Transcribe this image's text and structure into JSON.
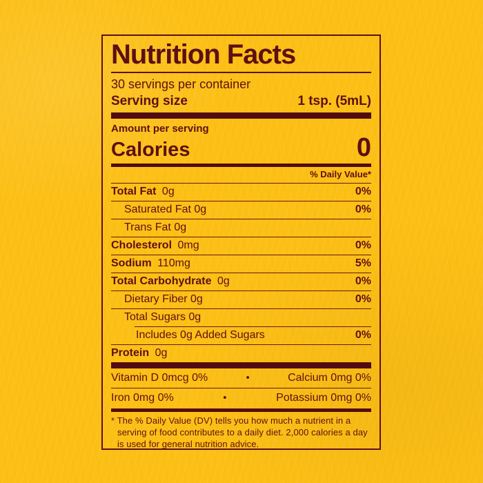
{
  "label": {
    "title": "Nutrition Facts",
    "servings_per_container": "30 servings per container",
    "serving_size_label": "Serving size",
    "serving_size_value": "1 tsp. (5mL)",
    "amount_per_serving": "Amount per serving",
    "calories_label": "Calories",
    "calories_value": "0",
    "daily_value_header": "% Daily Value*",
    "rows": [
      {
        "name": "Total Fat",
        "amount": "0g",
        "dv": "0%",
        "bold": true,
        "indent": 0,
        "sep_indent": false
      },
      {
        "name": "Saturated Fat",
        "amount": "0g",
        "dv": "0%",
        "bold": false,
        "indent": 1,
        "sep_indent": false
      },
      {
        "name": "Trans Fat",
        "amount": "0g",
        "dv": "",
        "bold": false,
        "indent": 1,
        "sep_indent": false
      },
      {
        "name": "Cholesterol",
        "amount": "0mg",
        "dv": "0%",
        "bold": true,
        "indent": 0,
        "sep_indent": false
      },
      {
        "name": "Sodium",
        "amount": "110mg",
        "dv": "5%",
        "bold": true,
        "indent": 0,
        "sep_indent": false
      },
      {
        "name": "Total Carbohydrate",
        "amount": "0g",
        "dv": "0%",
        "bold": true,
        "indent": 0,
        "sep_indent": false
      },
      {
        "name": "Dietary Fiber",
        "amount": "0g",
        "dv": "0%",
        "bold": false,
        "indent": 1,
        "sep_indent": false
      },
      {
        "name": "Total Sugars",
        "amount": "0g",
        "dv": "",
        "bold": false,
        "indent": 1,
        "sep_indent": false
      },
      {
        "name": "Includes 0g Added Sugars",
        "amount": "",
        "dv": "0%",
        "bold": false,
        "indent": 2,
        "sep_indent": true
      },
      {
        "name": "Protein",
        "amount": "0g",
        "dv": "",
        "bold": true,
        "indent": 0,
        "sep_indent": false
      }
    ],
    "bullet": "•",
    "micronutrients": [
      {
        "left": "Vitamin D 0mcg 0%",
        "right": "Calcium 0mg 0%"
      },
      {
        "left": "Iron 0mg 0%",
        "right": "Potassium 0mg 0%"
      }
    ],
    "footnote": "* The % Daily Value (DV) tells you how much a nutrient in a serving of food contributes to a daily diet. 2,000 calories a day is used for general nutrition advice.",
    "colors": {
      "background": "#fcbf15",
      "ink": "#5d1013",
      "bar": "#520c10"
    }
  }
}
